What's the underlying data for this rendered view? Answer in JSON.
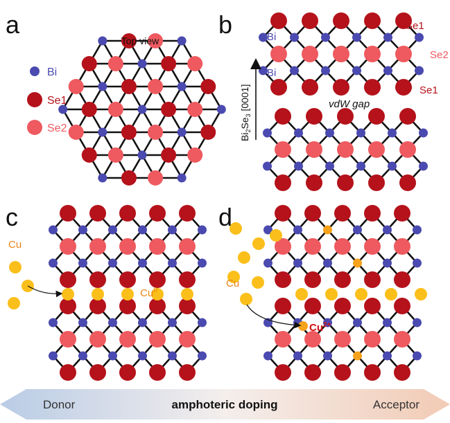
{
  "panels": {
    "a": "a",
    "b": "b",
    "c": "c",
    "d": "d"
  },
  "legend": {
    "bi": "Bi",
    "se1": "Se1",
    "se2": "Se2"
  },
  "panel_a": {
    "title": "Top view"
  },
  "panel_b": {
    "axis_label_prefix": "Bi",
    "axis_label_sub1": "2",
    "axis_label_mid": "Se",
    "axis_label_sub2": "3",
    "axis_label_suffix": " [0001]",
    "bi_label_top": "Bi",
    "bi_label_bottom": "Bi",
    "se1_label_top": "Se1",
    "se2_label": "Se2",
    "se1_label_bottom": "Se1",
    "gap_label": "vdW gap"
  },
  "panel_c": {
    "cu_label": "Cu",
    "cu0_label": "Cu",
    "cu0_sup": "0"
  },
  "panel_d": {
    "cu_label": "Cu",
    "cu2_label": "Cu",
    "cu2_sup": "2+"
  },
  "bottom_arrow": {
    "left": "Donor",
    "center": "amphoteric doping",
    "right": "Acceptor"
  },
  "colors": {
    "bi": "#4b4ab0",
    "se1": "#b5121b",
    "se2": "#ee5a5f",
    "cu": "#fbbf1b",
    "cu_site": "#f7a21b",
    "bond": "#111111",
    "arrow_left": "#b9cce6",
    "arrow_right": "#f2cbb5",
    "cu_text": "#e8841a",
    "cu_ion_text": "#d01010"
  }
}
